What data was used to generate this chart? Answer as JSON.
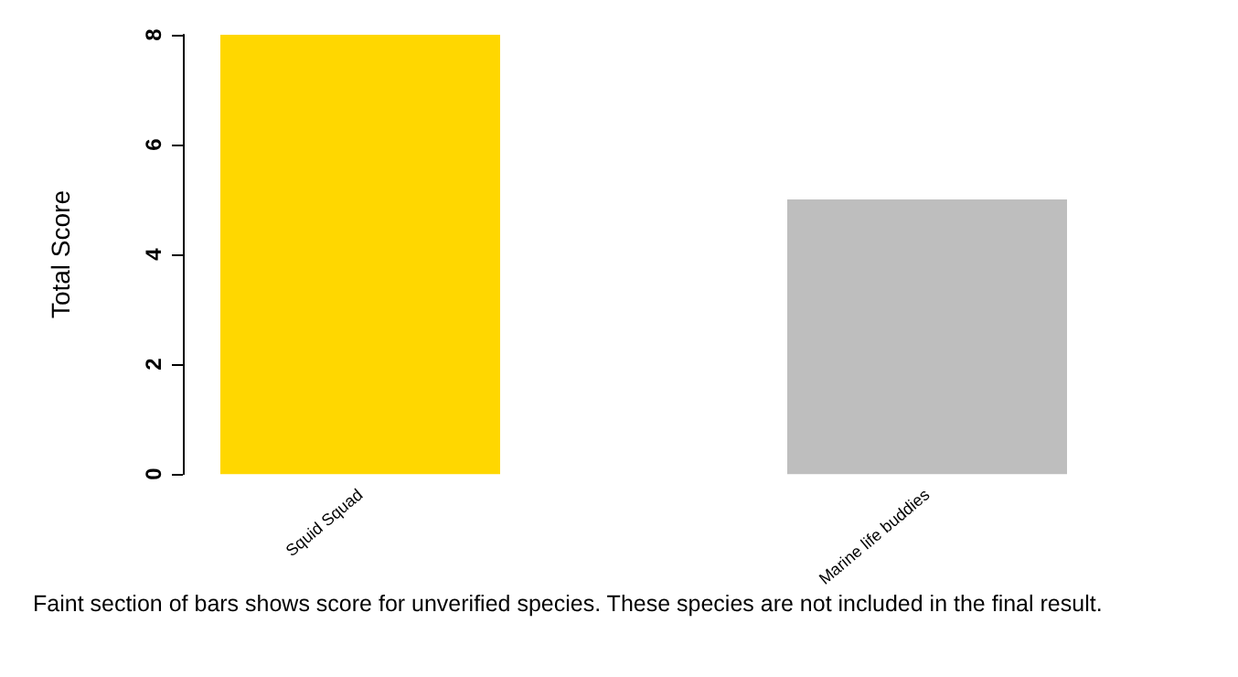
{
  "chart_data": {
    "type": "bar",
    "ylabel": "Total Score",
    "categories": [
      "Squid Squad",
      "Marine life buddies"
    ],
    "values": [
      8,
      5
    ],
    "colors": [
      "#ffd700",
      "#bebebe"
    ],
    "ylim": [
      0,
      8
    ],
    "yticks": [
      0,
      2,
      4,
      6,
      8
    ],
    "grid": false,
    "annotations": [
      "Faint section of bars shows score for unverified species.  These species are not included in the final result."
    ]
  }
}
